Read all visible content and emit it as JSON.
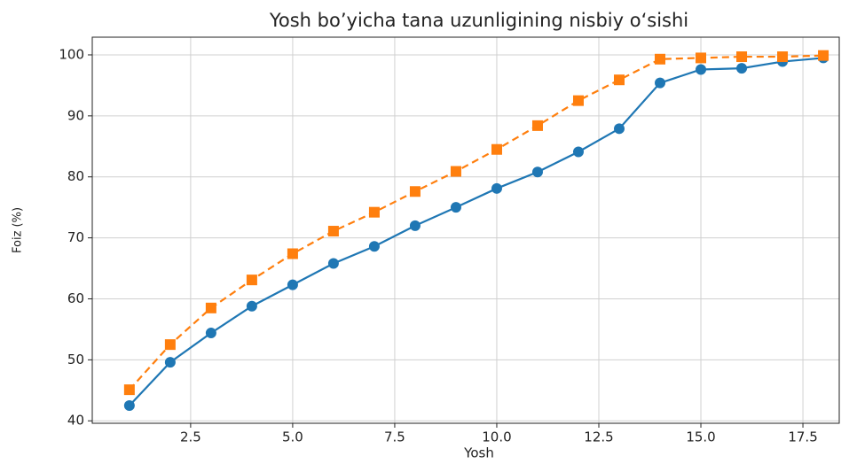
{
  "chart_data": {
    "type": "line",
    "title": "Yosh bo’yicha tana uzunligining nisbiy o‘sishi",
    "x_label": "Yosh",
    "y_label": "Foiz (%)",
    "x": [
      1,
      2,
      3,
      4,
      5,
      6,
      7,
      8,
      9,
      10,
      11,
      12,
      13,
      14,
      15,
      16,
      17,
      18
    ],
    "series": [
      {
        "color": "#1f77b4",
        "linestyle": "solid",
        "marker": "circle",
        "values": [
          42.5,
          49.6,
          54.4,
          58.8,
          62.3,
          65.8,
          68.6,
          72.0,
          75.0,
          78.1,
          80.8,
          84.1,
          87.9,
          95.4,
          97.6,
          97.8,
          98.9,
          99.5
        ]
      },
      {
        "color": "#ff7f0e",
        "linestyle": "dashed",
        "marker": "square",
        "values": [
          45.1,
          52.5,
          58.5,
          63.1,
          67.4,
          71.1,
          74.2,
          77.6,
          80.9,
          84.5,
          88.4,
          92.5,
          95.9,
          99.3,
          99.5,
          99.7,
          99.7,
          99.9
        ]
      }
    ],
    "xlim": [
      0.09,
      18.39
    ],
    "xticks": [
      2.5,
      {
        "value": 5,
        "label": "5.0"
      },
      7.5,
      {
        "value": 10,
        "label": "10.0"
      },
      12.5,
      {
        "value": 15,
        "label": "15.0"
      },
      17.5
    ],
    "ylim": [
      39.6,
      102.9
    ],
    "yticks": [
      40,
      50,
      60,
      70,
      80,
      90,
      100
    ],
    "grid": true
  }
}
